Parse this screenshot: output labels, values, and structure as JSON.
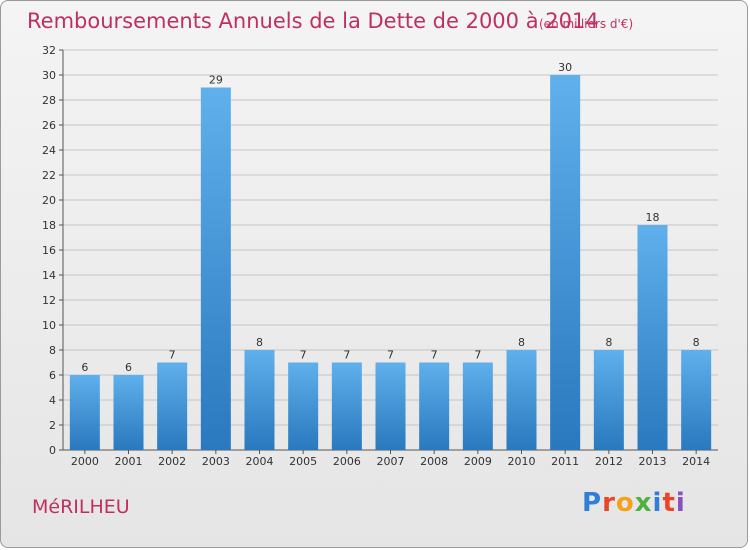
{
  "chart_data": {
    "type": "bar",
    "title": "Remboursements Annuels de la Dette de 2000 à 2014",
    "subtitle": "(en milliers d'€)",
    "categories": [
      "2000",
      "2001",
      "2002",
      "2003",
      "2004",
      "2005",
      "2006",
      "2007",
      "2008",
      "2009",
      "2010",
      "2011",
      "2012",
      "2013",
      "2014"
    ],
    "values": [
      6,
      6,
      7,
      29,
      8,
      7,
      7,
      7,
      7,
      7,
      8,
      30,
      8,
      18,
      8
    ],
    "ylim": [
      0,
      32
    ],
    "yticks": [
      0,
      2,
      4,
      6,
      8,
      10,
      12,
      14,
      16,
      18,
      20,
      22,
      24,
      26,
      28,
      30,
      32
    ],
    "grid": true,
    "bar_color": "#3a8fd6"
  },
  "commune": "MéRILHEU",
  "logo": {
    "text": "Proxiti",
    "colors": [
      "#2f7fd8",
      "#e8452a",
      "#f2a21b",
      "#52b043",
      "#2f7fd8",
      "#e8452a",
      "#8a4fc0"
    ]
  }
}
